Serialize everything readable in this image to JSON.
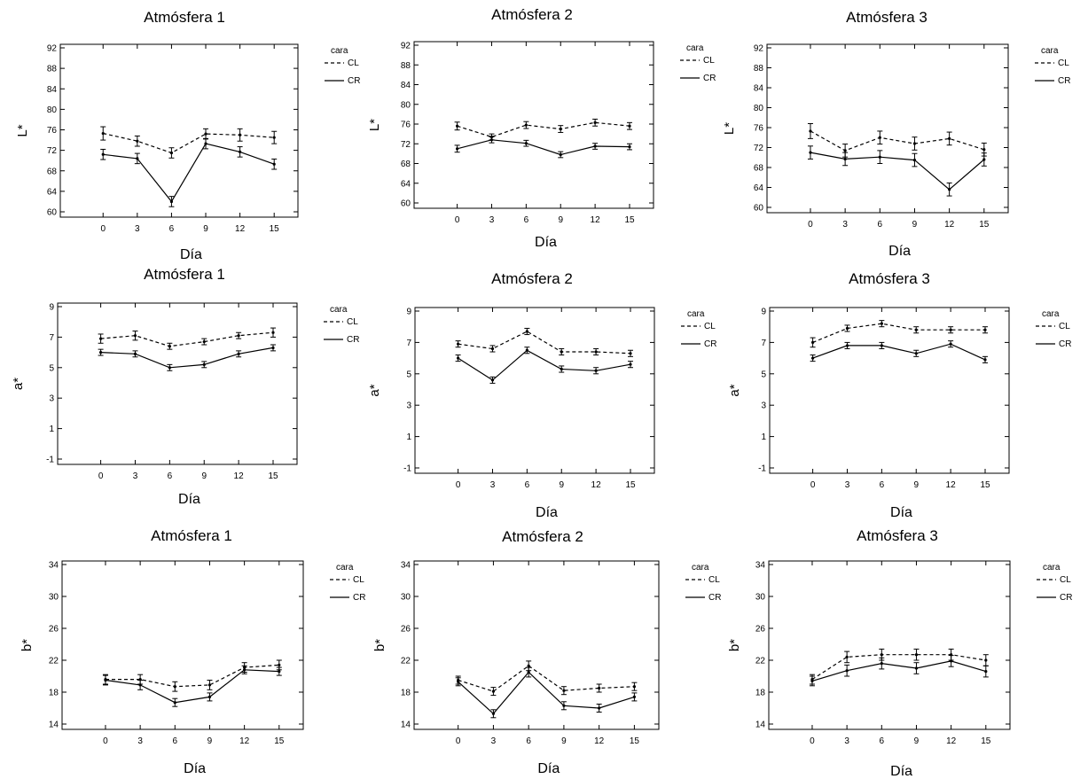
{
  "chart_data": [
    {
      "type": "line",
      "title": "Atmósfera 1",
      "xlabel": "Día",
      "ylabel": "L*",
      "ylim": [
        60,
        92
      ],
      "yticks": [
        60,
        64,
        68,
        72,
        76,
        80,
        84,
        88,
        92
      ],
      "x": [
        "0",
        "3",
        "6",
        "9",
        "12",
        "15"
      ],
      "legend": {
        "title": "cara",
        "position": "right"
      },
      "series": [
        {
          "name": "CL",
          "style": "dashed",
          "values": [
            75.3,
            73.8,
            71.5,
            75.2,
            75.0,
            74.5
          ],
          "error": [
            1.3,
            1.0,
            1.0,
            1.0,
            1.2,
            1.2
          ]
        },
        {
          "name": "CR",
          "style": "solid",
          "values": [
            71.2,
            70.4,
            62.0,
            73.3,
            71.7,
            69.3
          ],
          "error": [
            1.0,
            1.0,
            1.0,
            1.0,
            1.0,
            1.0
          ]
        }
      ]
    },
    {
      "type": "line",
      "title": "Atmósfera 2",
      "xlabel": "Día",
      "ylabel": "L*",
      "ylim": [
        60,
        92
      ],
      "yticks": [
        60,
        64,
        68,
        72,
        76,
        80,
        84,
        88,
        92
      ],
      "x": [
        "0",
        "3",
        "6",
        "9",
        "12",
        "15"
      ],
      "legend": {
        "title": "cara",
        "position": "right"
      },
      "series": [
        {
          "name": "CL",
          "style": "dashed",
          "values": [
            75.6,
            73.4,
            75.8,
            75.0,
            76.3,
            75.6
          ],
          "error": [
            0.8,
            0.6,
            0.7,
            0.7,
            0.7,
            0.7
          ]
        },
        {
          "name": "CR",
          "style": "solid",
          "values": [
            71.0,
            72.8,
            72.1,
            69.8,
            71.5,
            71.4
          ],
          "error": [
            0.7,
            0.6,
            0.6,
            0.6,
            0.6,
            0.6
          ]
        }
      ]
    },
    {
      "type": "line",
      "title": "Atmósfera 3",
      "xlabel": "Día",
      "ylabel": "L*",
      "ylim": [
        60,
        92
      ],
      "yticks": [
        60,
        64,
        68,
        72,
        76,
        80,
        84,
        88,
        92
      ],
      "x": [
        "0",
        "3",
        "6",
        "9",
        "12",
        "15"
      ],
      "legend": {
        "title": "cara",
        "position": "right"
      },
      "series": [
        {
          "name": "CL",
          "style": "dashed",
          "values": [
            75.3,
            71.4,
            74.0,
            72.8,
            73.8,
            71.6
          ],
          "error": [
            1.5,
            1.3,
            1.3,
            1.3,
            1.3,
            1.3
          ]
        },
        {
          "name": "CR",
          "style": "solid",
          "values": [
            71.0,
            69.7,
            70.1,
            69.5,
            63.6,
            69.6
          ],
          "error": [
            1.3,
            1.3,
            1.3,
            1.3,
            1.3,
            1.3
          ]
        }
      ]
    },
    {
      "type": "line",
      "title": "Atmósfera 1",
      "xlabel": "Día",
      "ylabel": "a*",
      "ylim": [
        -1,
        9
      ],
      "yticks": [
        -1,
        1,
        3,
        5,
        7,
        9
      ],
      "x": [
        "0",
        "3",
        "6",
        "9",
        "12",
        "15"
      ],
      "legend": {
        "title": "cara",
        "position": "right"
      },
      "series": [
        {
          "name": "CL",
          "style": "dashed",
          "values": [
            6.9,
            7.1,
            6.4,
            6.7,
            7.1,
            7.3
          ],
          "error": [
            0.3,
            0.3,
            0.2,
            0.2,
            0.2,
            0.3
          ]
        },
        {
          "name": "CR",
          "style": "solid",
          "values": [
            6.0,
            5.9,
            5.0,
            5.2,
            5.9,
            6.3
          ],
          "error": [
            0.2,
            0.2,
            0.2,
            0.2,
            0.2,
            0.2
          ]
        }
      ]
    },
    {
      "type": "line",
      "title": "Atmósfera 2",
      "xlabel": "Día",
      "ylabel": "a*",
      "ylim": [
        -1,
        9
      ],
      "yticks": [
        -1,
        1,
        3,
        5,
        7,
        9
      ],
      "x": [
        "0",
        "3",
        "6",
        "9",
        "12",
        "15"
      ],
      "legend": {
        "title": "cara",
        "position": "right"
      },
      "series": [
        {
          "name": "CL",
          "style": "dashed",
          "values": [
            6.9,
            6.6,
            7.7,
            6.4,
            6.4,
            6.3
          ],
          "error": [
            0.2,
            0.2,
            0.2,
            0.2,
            0.2,
            0.2
          ]
        },
        {
          "name": "CR",
          "style": "solid",
          "values": [
            6.0,
            4.6,
            6.5,
            5.3,
            5.2,
            5.6
          ],
          "error": [
            0.2,
            0.2,
            0.2,
            0.2,
            0.2,
            0.2
          ]
        }
      ]
    },
    {
      "type": "line",
      "title": "Atmósfera 3",
      "xlabel": "Día",
      "ylabel": "a*",
      "ylim": [
        -1,
        9
      ],
      "yticks": [
        -1,
        1,
        3,
        5,
        7,
        9
      ],
      "x": [
        "0",
        "3",
        "6",
        "9",
        "12",
        "15"
      ],
      "legend": {
        "title": "cara",
        "position": "right"
      },
      "series": [
        {
          "name": "CL",
          "style": "dashed",
          "values": [
            7.0,
            7.9,
            8.2,
            7.8,
            7.8,
            7.8
          ],
          "error": [
            0.3,
            0.2,
            0.2,
            0.2,
            0.2,
            0.2
          ]
        },
        {
          "name": "CR",
          "style": "solid",
          "values": [
            6.0,
            6.8,
            6.8,
            6.3,
            6.9,
            5.9
          ],
          "error": [
            0.2,
            0.2,
            0.2,
            0.2,
            0.2,
            0.2
          ]
        }
      ]
    },
    {
      "type": "line",
      "title": "Atmósfera 1",
      "xlabel": "Día",
      "ylabel": "b*",
      "ylim": [
        14,
        34
      ],
      "yticks": [
        14,
        18,
        22,
        26,
        30,
        34
      ],
      "x": [
        "0",
        "3",
        "6",
        "9",
        "12",
        "15"
      ],
      "legend": {
        "title": "cara",
        "position": "right"
      },
      "series": [
        {
          "name": "CL",
          "style": "dashed",
          "values": [
            19.6,
            19.6,
            18.7,
            18.9,
            21.1,
            21.4
          ],
          "error": [
            0.6,
            0.6,
            0.6,
            0.6,
            0.6,
            0.6
          ]
        },
        {
          "name": "CR",
          "style": "solid",
          "values": [
            19.5,
            18.9,
            16.7,
            17.4,
            20.8,
            20.6
          ],
          "error": [
            0.6,
            0.6,
            0.5,
            0.5,
            0.5,
            0.5
          ]
        }
      ]
    },
    {
      "type": "line",
      "title": "Atmósfera 2",
      "xlabel": "Día",
      "ylabel": "b*",
      "ylim": [
        14,
        34
      ],
      "yticks": [
        14,
        18,
        22,
        26,
        30,
        34
      ],
      "x": [
        "0",
        "3",
        "6",
        "9",
        "12",
        "15"
      ],
      "legend": {
        "title": "cara",
        "position": "right"
      },
      "series": [
        {
          "name": "CL",
          "style": "dashed",
          "values": [
            19.5,
            18.1,
            21.3,
            18.2,
            18.5,
            18.7
          ],
          "error": [
            0.5,
            0.5,
            0.6,
            0.5,
            0.5,
            0.5
          ]
        },
        {
          "name": "CR",
          "style": "solid",
          "values": [
            19.3,
            15.3,
            20.5,
            16.3,
            16.0,
            17.4
          ],
          "error": [
            0.5,
            0.5,
            0.6,
            0.5,
            0.5,
            0.5
          ]
        }
      ]
    },
    {
      "type": "line",
      "title": "Atmósfera 3",
      "xlabel": "Día",
      "ylabel": "b*",
      "ylim": [
        14,
        34
      ],
      "yticks": [
        14,
        18,
        22,
        26,
        30,
        34
      ],
      "x": [
        "0",
        "3",
        "6",
        "9",
        "12",
        "15"
      ],
      "legend": {
        "title": "cara",
        "position": "right"
      },
      "series": [
        {
          "name": "CL",
          "style": "dashed",
          "values": [
            19.6,
            22.4,
            22.7,
            22.7,
            22.7,
            22.0
          ],
          "error": [
            0.6,
            0.7,
            0.7,
            0.7,
            0.7,
            0.7
          ]
        },
        {
          "name": "CR",
          "style": "solid",
          "values": [
            19.4,
            20.7,
            21.6,
            21.0,
            21.9,
            20.6
          ],
          "error": [
            0.6,
            0.7,
            0.7,
            0.7,
            0.7,
            0.7
          ]
        }
      ]
    }
  ]
}
